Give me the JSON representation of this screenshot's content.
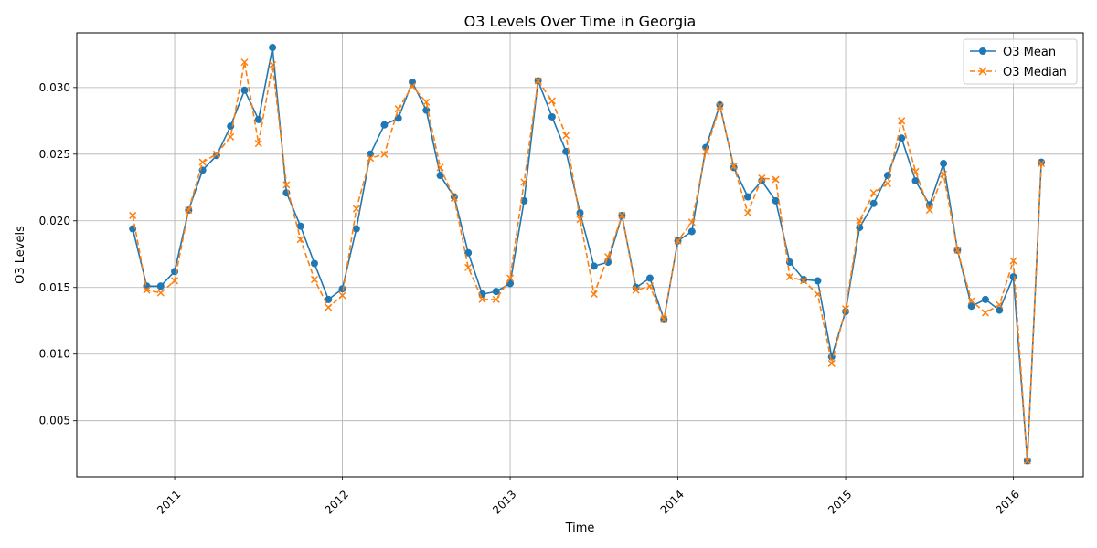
{
  "chart_data": {
    "type": "line",
    "title": "O3 Levels Over Time in Georgia",
    "xlabel": "Time",
    "ylabel": "O3 Levels",
    "x_ticks": [
      "2011",
      "2012",
      "2013",
      "2014",
      "2015",
      "2016"
    ],
    "y_ticks": [
      "0.005",
      "0.010",
      "0.015",
      "0.020",
      "0.025",
      "0.030"
    ],
    "xlim": [
      "2010-06",
      "2016-06"
    ],
    "ylim": [
      0.0008,
      0.0341
    ],
    "grid": true,
    "legend_position": "top-right",
    "x": [
      "2010-10",
      "2010-11",
      "2010-12",
      "2011-01",
      "2011-02",
      "2011-03",
      "2011-04",
      "2011-05",
      "2011-06",
      "2011-07",
      "2011-08",
      "2011-09",
      "2011-10",
      "2011-11",
      "2011-12",
      "2012-01",
      "2012-02",
      "2012-03",
      "2012-04",
      "2012-05",
      "2012-06",
      "2012-07",
      "2012-08",
      "2012-09",
      "2012-10",
      "2012-11",
      "2012-12",
      "2013-01",
      "2013-02",
      "2013-03",
      "2013-04",
      "2013-05",
      "2013-06",
      "2013-07",
      "2013-08",
      "2013-09",
      "2013-10",
      "2013-11",
      "2013-12",
      "2014-01",
      "2014-02",
      "2014-03",
      "2014-04",
      "2014-05",
      "2014-06",
      "2014-07",
      "2014-08",
      "2014-09",
      "2014-10",
      "2014-11",
      "2014-12",
      "2015-01",
      "2015-02",
      "2015-03",
      "2015-04",
      "2015-05",
      "2015-06",
      "2015-07",
      "2015-08",
      "2015-09",
      "2015-10",
      "2015-11",
      "2015-12",
      "2016-01",
      "2016-02",
      "2016-03"
    ],
    "series": [
      {
        "name": "O3 Mean",
        "color": "#1f77b4",
        "style": "solid",
        "marker": "circle",
        "values": [
          0.0194,
          0.0151,
          0.0151,
          0.0162,
          0.0208,
          0.0238,
          0.0249,
          0.0271,
          0.0298,
          0.0276,
          0.033,
          0.0221,
          0.0196,
          0.0168,
          0.0141,
          0.0149,
          0.0194,
          0.025,
          0.0272,
          0.0277,
          0.0304,
          0.0283,
          0.0234,
          0.0218,
          0.0176,
          0.0145,
          0.0147,
          0.0153,
          0.0215,
          0.0305,
          0.0278,
          0.0252,
          0.0206,
          0.0166,
          0.0169,
          0.0204,
          0.015,
          0.0157,
          0.0126,
          0.0185,
          0.0192,
          0.0255,
          0.0287,
          0.024,
          0.0218,
          0.023,
          0.0215,
          0.0169,
          0.0156,
          0.0155,
          0.0098,
          0.0132,
          0.0195,
          0.0213,
          0.0234,
          0.0262,
          0.023,
          0.0212,
          0.0243,
          0.0178,
          0.0136,
          0.0141,
          0.0133,
          0.0158,
          0.002,
          0.0244
        ]
      },
      {
        "name": "O3 Median",
        "color": "#ff7f0e",
        "style": "dashed",
        "marker": "x",
        "values": [
          0.0204,
          0.0148,
          0.0146,
          0.0155,
          0.0208,
          0.0244,
          0.025,
          0.0263,
          0.0319,
          0.0258,
          0.0317,
          0.0227,
          0.0186,
          0.0156,
          0.0135,
          0.0144,
          0.0209,
          0.0247,
          0.025,
          0.0284,
          0.0301,
          0.0289,
          0.024,
          0.0217,
          0.0165,
          0.0141,
          0.0141,
          0.0157,
          0.0229,
          0.0305,
          0.029,
          0.0264,
          0.0201,
          0.0145,
          0.0173,
          0.0204,
          0.0148,
          0.0151,
          0.0126,
          0.0185,
          0.0199,
          0.0252,
          0.0286,
          0.0241,
          0.0206,
          0.0232,
          0.0231,
          0.0158,
          0.0155,
          0.0145,
          0.0093,
          0.0134,
          0.02,
          0.0221,
          0.0228,
          0.0275,
          0.0237,
          0.0208,
          0.0235,
          0.0178,
          0.014,
          0.0131,
          0.0137,
          0.017,
          0.002,
          0.0243
        ]
      }
    ]
  }
}
